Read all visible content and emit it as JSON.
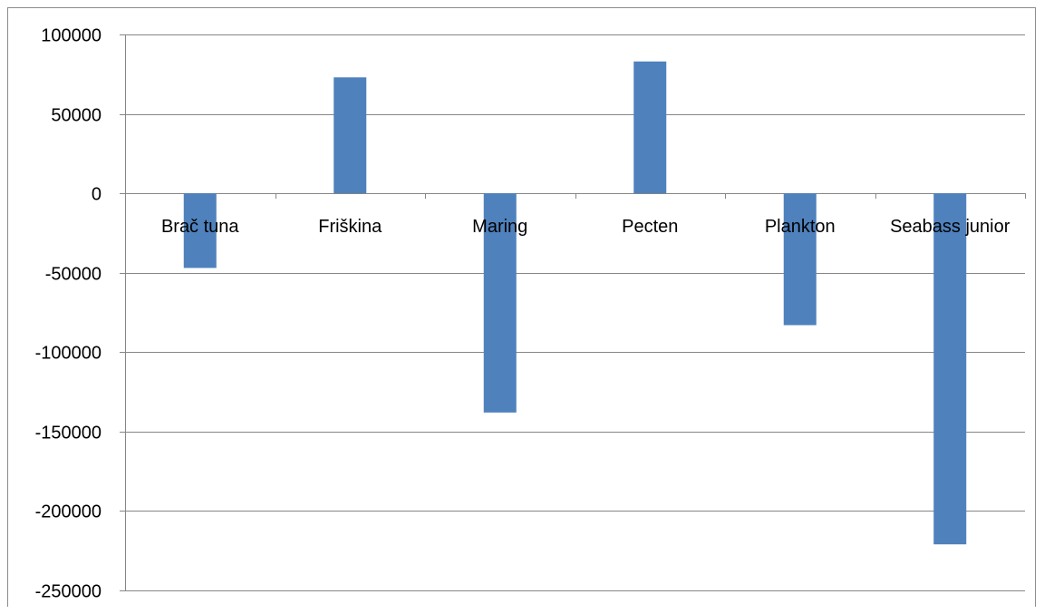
{
  "chart_data": {
    "type": "bar",
    "title": "",
    "xlabel": "",
    "ylabel": "",
    "categories": [
      "Brač tuna",
      "Friškina",
      "Maring",
      "Pecten",
      "Plankton",
      "Seabass junior"
    ],
    "values": [
      -47000,
      73000,
      -138000,
      83000,
      -83000,
      -221000
    ],
    "ylim": [
      -250000,
      100000
    ],
    "yticks": [
      100000,
      50000,
      0,
      -50000,
      -100000,
      -150000,
      -200000,
      -250000
    ],
    "ytick_labels": [
      "100000",
      "50000",
      "0",
      "-50000",
      "-100000",
      "-150000",
      "-200000",
      "-250000"
    ],
    "grid": true,
    "legend": "none",
    "colors": {
      "bar": "#4f81bd",
      "grid": "#868686",
      "axis": "#868686"
    }
  }
}
